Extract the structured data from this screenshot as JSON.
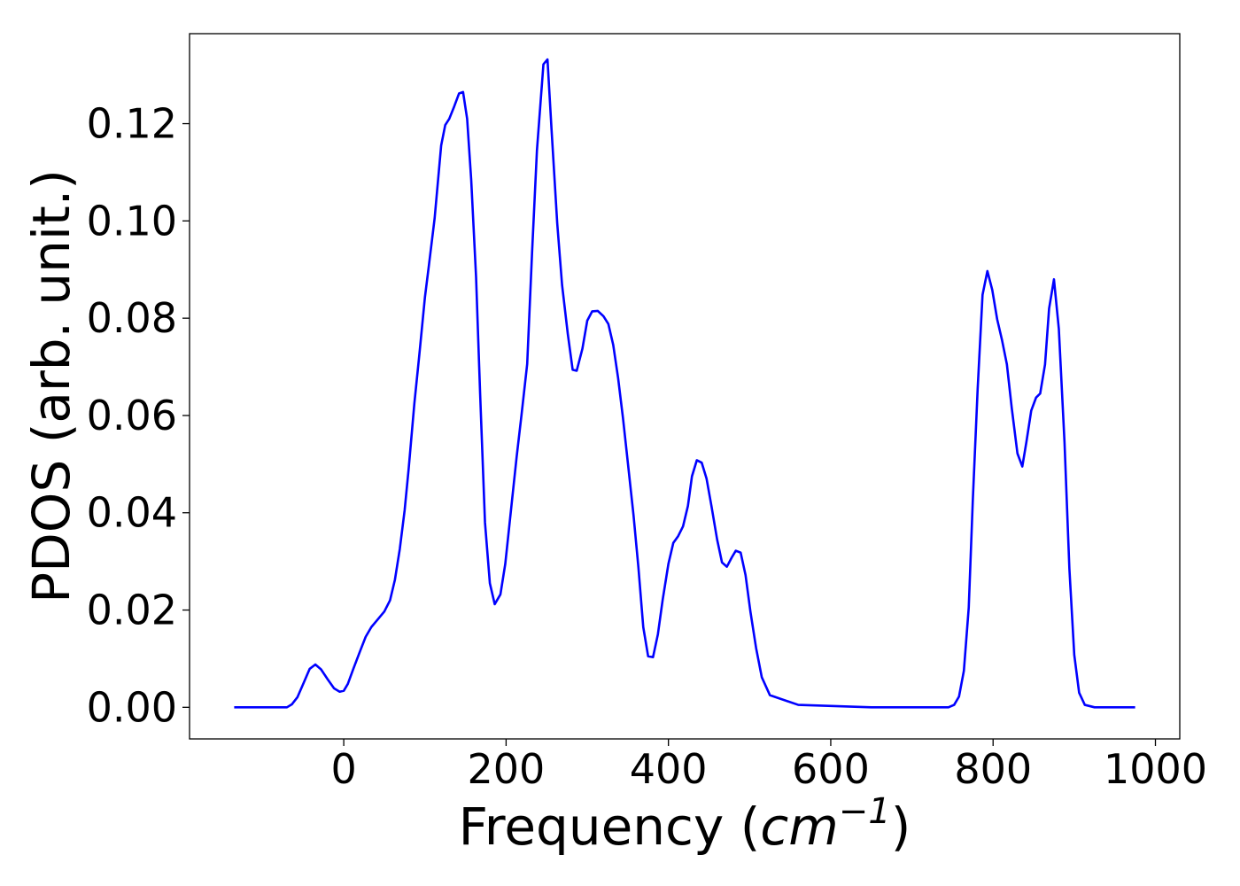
{
  "chart_data": {
    "type": "line",
    "title": "",
    "xlabel": {
      "prefix": "Frequency (",
      "unit_base": "cm",
      "unit_exp": "−1",
      "suffix": ")"
    },
    "ylabel": "PDOS (arb. unit.)",
    "xlim": [
      -190,
      1030
    ],
    "ylim": [
      -0.0065,
      0.1385
    ],
    "xticks": [
      0,
      200,
      400,
      600,
      800,
      1000
    ],
    "xtick_labels": [
      "0",
      "200",
      "400",
      "600",
      "800",
      "1000"
    ],
    "yticks": [
      0.0,
      0.02,
      0.04,
      0.06,
      0.08,
      0.1,
      0.12
    ],
    "ytick_labels": [
      "0.00",
      "0.02",
      "0.04",
      "0.06",
      "0.08",
      "0.10",
      "0.12"
    ],
    "grid": false,
    "legend": null,
    "series": [
      {
        "color": "#0000ff",
        "x": [
          -135,
          -110,
          -85,
          -70,
          -64,
          -57,
          -50,
          -42,
          -35,
          -28,
          -20,
          -12,
          -5,
          0,
          5,
          12,
          20,
          27,
          34,
          40,
          50,
          57,
          63,
          69,
          75,
          80,
          87,
          93,
          100,
          105,
          112,
          120,
          125,
          130,
          136,
          142,
          147,
          152,
          157,
          163,
          168,
          174,
          180,
          186,
          193,
          199,
          206,
          213,
          219,
          226,
          232,
          238,
          246,
          251,
          256,
          263,
          269,
          276,
          282,
          287,
          294,
          300,
          306,
          313,
          320,
          326,
          332,
          338,
          344,
          350,
          357,
          363,
          369,
          375,
          381,
          387,
          393,
          400,
          406,
          412,
          418,
          424,
          429,
          435,
          441,
          447,
          453,
          460,
          466,
          472,
          478,
          483,
          489,
          495,
          501,
          508,
          515,
          525,
          560,
          650,
          745,
          752,
          758,
          764,
          770,
          775,
          781,
          787,
          793,
          799,
          805,
          811,
          817,
          823,
          830,
          836,
          841,
          847,
          853,
          858,
          864,
          869,
          875,
          881,
          888,
          894,
          900,
          906,
          913,
          925,
          975
        ],
        "y": [
          0.0,
          0.0,
          0.0,
          0.0,
          0.0006,
          0.0021,
          0.0048,
          0.0079,
          0.0088,
          0.0078,
          0.0058,
          0.0039,
          0.0032,
          0.0034,
          0.0048,
          0.008,
          0.0115,
          0.0145,
          0.0165,
          0.0177,
          0.0197,
          0.022,
          0.0262,
          0.0325,
          0.0405,
          0.0491,
          0.0625,
          0.0723,
          0.0843,
          0.091,
          0.1006,
          0.1155,
          0.1197,
          0.121,
          0.1235,
          0.1262,
          0.1265,
          0.121,
          0.1085,
          0.0885,
          0.0645,
          0.038,
          0.0255,
          0.0212,
          0.0232,
          0.0295,
          0.0405,
          0.0515,
          0.0601,
          0.0706,
          0.0935,
          0.1145,
          0.1322,
          0.1332,
          0.1188,
          0.0995,
          0.0868,
          0.0768,
          0.0694,
          0.0692,
          0.0737,
          0.0795,
          0.0814,
          0.0815,
          0.0804,
          0.0788,
          0.0745,
          0.0677,
          0.0595,
          0.0503,
          0.0395,
          0.0288,
          0.0165,
          0.0105,
          0.0103,
          0.015,
          0.0222,
          0.0295,
          0.0338,
          0.0352,
          0.0372,
          0.0414,
          0.0475,
          0.0508,
          0.0503,
          0.047,
          0.0414,
          0.0345,
          0.0298,
          0.0289,
          0.0308,
          0.0322,
          0.0318,
          0.0272,
          0.0197,
          0.0122,
          0.0062,
          0.0025,
          0.0005,
          0.0,
          0.0,
          0.0005,
          0.0022,
          0.0075,
          0.0205,
          0.0425,
          0.0655,
          0.0848,
          0.0897,
          0.0858,
          0.0798,
          0.0755,
          0.0705,
          0.0615,
          0.0522,
          0.0495,
          0.0545,
          0.061,
          0.0637,
          0.0645,
          0.0705,
          0.082,
          0.088,
          0.0778,
          0.0545,
          0.0285,
          0.0108,
          0.003,
          0.0005,
          0.0,
          0.0
        ]
      }
    ]
  }
}
